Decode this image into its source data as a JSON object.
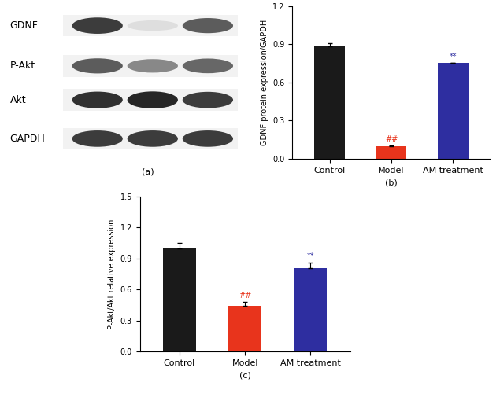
{
  "blot": {
    "labels": [
      "GDNF",
      "P-Akt",
      "Akt",
      "GAPDH"
    ],
    "panel_label": "(a)"
  },
  "chart_data": [
    {
      "type": "bar",
      "xlabel": "(b)",
      "ylabel": "GDNF protein expression/GAPDH",
      "categories": [
        "Control",
        "Model",
        "AM treatment"
      ],
      "values": [
        0.88,
        0.1,
        0.75
      ],
      "errors": [
        0.03,
        0.005,
        0.005
      ],
      "colors": [
        "#1a1a1a",
        "#e8341c",
        "#2e2ea0"
      ],
      "annotations": [
        {
          "category": "Model",
          "text": "##"
        },
        {
          "category": "AM treatment",
          "text": "**"
        }
      ],
      "ylim": [
        0,
        1.2
      ],
      "yticks": [
        {
          "value": 0,
          "label": "0.0"
        },
        0.3,
        0.6,
        0.9,
        1.2
      ]
    },
    {
      "type": "bar",
      "xlabel": "(c)",
      "ylabel": "P-Akt/Akt relative expression",
      "categories": [
        "Control",
        "Model",
        "AM treatment"
      ],
      "values": [
        1.0,
        0.44,
        0.81
      ],
      "errors": [
        0.05,
        0.04,
        0.05
      ],
      "colors": [
        "#1a1a1a",
        "#e8341c",
        "#2e2ea0"
      ],
      "annotations": [
        {
          "category": "Model",
          "text": "##"
        },
        {
          "category": "AM treatment",
          "text": "**"
        }
      ],
      "ylim": [
        0,
        1.5
      ],
      "yticks": [
        {
          "value": 0,
          "label": "0.0"
        },
        0.3,
        0.6,
        0.9,
        1.2,
        1.5
      ]
    }
  ]
}
